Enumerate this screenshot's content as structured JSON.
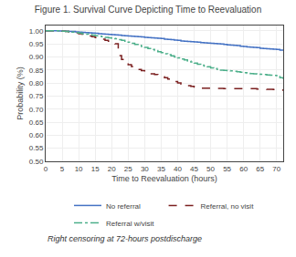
{
  "chart_data": {
    "type": "step",
    "title": "Figure 1. Survival Curve Depicting Time to Reevaluation",
    "xlabel": "Time to Reevaluation (hours)",
    "ylabel": "Probability (%)",
    "annotations": [
      "Right censoring at 72-hours postdischarge"
    ],
    "x": [
      0,
      1,
      2,
      3,
      4,
      5,
      6,
      7,
      8,
      9,
      10,
      11,
      12,
      13,
      14,
      15,
      16,
      17,
      18,
      19,
      20,
      21,
      22,
      23,
      24,
      25,
      26,
      27,
      28,
      29,
      30,
      31,
      32,
      33,
      34,
      35,
      36,
      37,
      38,
      39,
      40,
      41,
      42,
      43,
      44,
      45,
      46,
      47,
      48,
      49,
      50,
      51,
      52,
      53,
      54,
      55,
      56,
      57,
      58,
      59,
      60,
      61,
      62,
      63,
      64,
      65,
      66,
      67,
      68,
      69,
      70,
      71,
      72
    ],
    "series": [
      {
        "name": "No referral",
        "color": "#4472c4",
        "line_style": "solid",
        "values": [
          1.0,
          1.0,
          1.0,
          1.0,
          0.999,
          0.998,
          0.998,
          0.997,
          0.997,
          0.996,
          0.995,
          0.994,
          0.993,
          0.992,
          0.991,
          0.99,
          0.989,
          0.988,
          0.987,
          0.986,
          0.985,
          0.984,
          0.983,
          0.982,
          0.981,
          0.98,
          0.979,
          0.978,
          0.977,
          0.976,
          0.975,
          0.974,
          0.973,
          0.972,
          0.971,
          0.97,
          0.968,
          0.967,
          0.966,
          0.964,
          0.963,
          0.961,
          0.96,
          0.959,
          0.958,
          0.957,
          0.956,
          0.955,
          0.954,
          0.953,
          0.952,
          0.951,
          0.95,
          0.949,
          0.948,
          0.946,
          0.945,
          0.944,
          0.943,
          0.941,
          0.94,
          0.938,
          0.937,
          0.936,
          0.935,
          0.933,
          0.932,
          0.931,
          0.93,
          0.929,
          0.928,
          0.926,
          0.924
        ]
      },
      {
        "name": "Referral, no visit",
        "color": "#7b2020",
        "line_style": "dashed",
        "values": [
          1.0,
          1.0,
          1.0,
          1.0,
          0.999,
          0.998,
          0.997,
          0.996,
          0.995,
          0.992,
          0.989,
          0.987,
          0.984,
          0.98,
          0.977,
          0.974,
          0.971,
          0.968,
          0.963,
          0.96,
          0.955,
          0.95,
          0.905,
          0.89,
          0.88,
          0.87,
          0.863,
          0.857,
          0.852,
          0.847,
          0.843,
          0.839,
          0.835,
          0.832,
          0.828,
          0.824,
          0.82,
          0.815,
          0.81,
          0.805,
          0.8,
          0.796,
          0.793,
          0.79,
          0.787,
          0.784,
          0.782,
          0.78,
          0.78,
          0.78,
          0.78,
          0.779,
          0.779,
          0.779,
          0.778,
          0.778,
          0.778,
          0.778,
          0.778,
          0.778,
          0.778,
          0.778,
          0.778,
          0.778,
          0.777,
          0.777,
          0.777,
          0.776,
          0.776,
          0.775,
          0.774,
          0.773,
          0.77
        ]
      },
      {
        "name": "Referral w/visit",
        "color": "#4caf8a",
        "line_style": "dashdot",
        "values": [
          1.0,
          1.0,
          1.0,
          1.0,
          0.999,
          0.998,
          0.997,
          0.996,
          0.995,
          0.993,
          0.991,
          0.989,
          0.987,
          0.985,
          0.983,
          0.981,
          0.979,
          0.977,
          0.975,
          0.973,
          0.971,
          0.969,
          0.966,
          0.963,
          0.96,
          0.956,
          0.952,
          0.948,
          0.944,
          0.94,
          0.936,
          0.932,
          0.928,
          0.924,
          0.92,
          0.916,
          0.912,
          0.908,
          0.904,
          0.9,
          0.896,
          0.892,
          0.888,
          0.884,
          0.88,
          0.876,
          0.872,
          0.868,
          0.865,
          0.862,
          0.858,
          0.855,
          0.852,
          0.849,
          0.848,
          0.847,
          0.846,
          0.845,
          0.843,
          0.841,
          0.839,
          0.837,
          0.836,
          0.835,
          0.834,
          0.833,
          0.832,
          0.831,
          0.83,
          0.829,
          0.828,
          0.82,
          0.815
        ]
      }
    ],
    "xlim": [
      0,
      72
    ],
    "ylim": [
      0.5,
      1.02
    ],
    "xticks": [
      0,
      5,
      10,
      15,
      20,
      25,
      30,
      35,
      40,
      45,
      50,
      55,
      60,
      65,
      70
    ],
    "yticks": [
      {
        "value": 0.5,
        "label": "0.50"
      },
      {
        "value": 0.55,
        "label": "0.55"
      },
      {
        "value": 0.6,
        "label": "0.60"
      },
      {
        "value": 0.65,
        "label": "0.65"
      },
      {
        "value": 0.7,
        "label": "0.70"
      },
      {
        "value": 0.75,
        "label": "0.75"
      },
      {
        "value": 0.8,
        "label": "0.80"
      },
      {
        "value": 0.85,
        "label": "0.85"
      },
      {
        "value": 0.9,
        "label": "0.90"
      },
      {
        "value": 0.95,
        "label": "0.95"
      },
      {
        "value": 1.0,
        "label": "1.00"
      }
    ],
    "grid": true,
    "legend": "bottom"
  }
}
